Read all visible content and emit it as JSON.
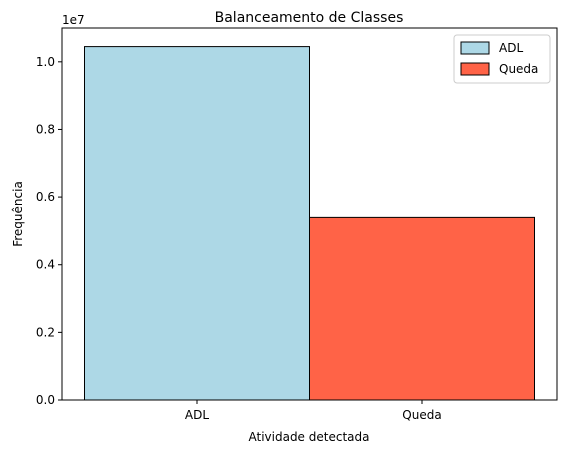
{
  "chart_data": {
    "type": "bar",
    "title": "Balanceamento de Classes",
    "xlabel": "Atividade detectada",
    "ylabel": "Frequência",
    "y_offset_label": "1e7",
    "categories": [
      "ADL",
      "Queda"
    ],
    "values": [
      10450000,
      5400000
    ],
    "colors": [
      "#add8e6",
      "#ff6347"
    ],
    "edge_color": "#000000",
    "ylim": [
      0,
      11000000
    ],
    "y_ticks": [
      0,
      2000000,
      4000000,
      6000000,
      8000000,
      10000000
    ],
    "y_tick_labels": [
      "0.0",
      "0.2",
      "0.4",
      "0.6",
      "0.8",
      "1.0"
    ],
    "grid": false,
    "legend": {
      "placement": "top-right",
      "entries": [
        {
          "label": "ADL",
          "color": "#add8e6"
        },
        {
          "label": "Queda",
          "color": "#ff6347"
        }
      ]
    }
  }
}
